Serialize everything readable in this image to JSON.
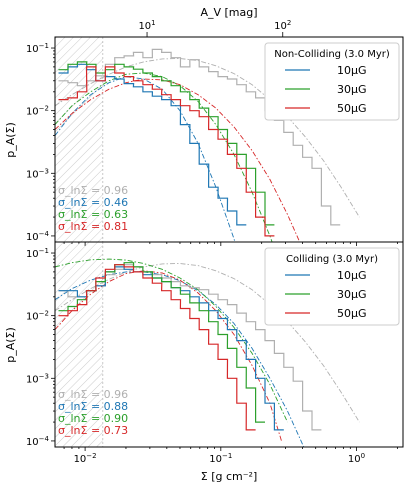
{
  "figure": {
    "top_axis_label": "A_V [mag]",
    "top_ticks": [
      {
        "label": "10",
        "sigma": 0.0286
      },
      {
        "label": "10",
        "sigma": 0.286
      }
    ],
    "top_tick_exponents": [
      "1",
      "2"
    ],
    "x_axis_label": "Σ [g cm⁻²]",
    "y_axis_label": "p_A(Σ)",
    "x_ticks": [
      {
        "value": 0.01,
        "base": "10",
        "exp": "−2"
      },
      {
        "value": 0.1,
        "base": "10",
        "exp": "−1"
      },
      {
        "value": 1,
        "base": "10",
        "exp": "0"
      }
    ],
    "y_ticks": [
      {
        "value": 0.0001,
        "base": "10",
        "exp": "−4"
      },
      {
        "value": 0.001,
        "base": "10",
        "exp": "−3"
      },
      {
        "value": 0.01,
        "base": "10",
        "exp": "−2"
      },
      {
        "value": 0.1,
        "base": "10",
        "exp": "−1"
      }
    ],
    "colors": {
      "gray": "#b0b0b0",
      "blue": "#1f77b4",
      "green": "#2ca02c",
      "red": "#d62728"
    }
  },
  "chart_data": [
    {
      "type": "line",
      "title": "",
      "legend_title": "Non-Colliding (3.0 Myr)",
      "legend_placement": "top-right",
      "x_scale": "log",
      "y_scale": "log",
      "xlim": [
        0.006,
        2.2
      ],
      "ylim": [
        8e-05,
        0.15
      ],
      "threshold_sigma": 0.0135,
      "sigma_labels": [
        {
          "text": "σ_lnΣ = 0.96",
          "color": "#b0b0b0"
        },
        {
          "text": "σ_lnΣ = 0.46",
          "color": "#1f77b4"
        },
        {
          "text": "σ_lnΣ = 0.63",
          "color": "#2ca02c"
        },
        {
          "text": "σ_lnΣ = 0.81",
          "color": "#d62728"
        }
      ],
      "series": [
        {
          "name": "",
          "color": "#b0b0b0",
          "x": [
            0.0069,
            0.0081,
            0.0095,
            0.0111,
            0.013,
            0.0153,
            0.0179,
            0.021,
            0.0246,
            0.0289,
            0.0339,
            0.0397,
            0.0466,
            0.0546,
            0.064,
            0.0751,
            0.0881,
            0.1033,
            0.1211,
            0.1421,
            0.1666,
            0.1954,
            0.2292,
            0.2688,
            0.3153,
            0.3698,
            0.4337,
            0.5087,
            0.5966,
            0.6998
          ],
          "y": [
            0.03,
            0.028,
            0.025,
            0.03,
            0.036,
            0.055,
            0.07,
            0.075,
            0.085,
            0.07,
            0.095,
            0.085,
            0.07,
            0.05,
            0.065,
            0.05,
            0.042,
            0.035,
            0.032,
            0.026,
            0.02,
            0.016,
            0.01,
            0.007,
            0.0045,
            0.0028,
            0.0018,
            0.0012,
            0.0003,
            0.00015
          ]
        },
        {
          "name": "10μG",
          "color": "#1f77b4",
          "x": [
            0.0069,
            0.0081,
            0.0095,
            0.0111,
            0.013,
            0.0153,
            0.0179,
            0.021,
            0.0246,
            0.0289,
            0.0339,
            0.0397,
            0.0466,
            0.0546,
            0.064,
            0.0751,
            0.0881,
            0.1033,
            0.1211,
            0.1421
          ],
          "y": [
            0.04,
            0.05,
            0.055,
            0.045,
            0.03,
            0.035,
            0.032,
            0.027,
            0.024,
            0.02,
            0.017,
            0.015,
            0.012,
            0.006,
            0.003,
            0.0014,
            0.0006,
            0.0004,
            0.00025,
            0.00015
          ]
        },
        {
          "name": "30μG",
          "color": "#2ca02c",
          "x": [
            0.0069,
            0.0081,
            0.0095,
            0.0111,
            0.013,
            0.0153,
            0.0179,
            0.021,
            0.0246,
            0.0289,
            0.0339,
            0.0397,
            0.0466,
            0.0546,
            0.064,
            0.0751,
            0.0881,
            0.1033,
            0.1211,
            0.1421,
            0.1666,
            0.1954,
            0.2292
          ],
          "y": [
            0.045,
            0.055,
            0.06,
            0.055,
            0.04,
            0.045,
            0.055,
            0.05,
            0.046,
            0.04,
            0.035,
            0.03,
            0.025,
            0.02,
            0.015,
            0.011,
            0.008,
            0.005,
            0.003,
            0.002,
            0.0012,
            0.0005,
            0.00015
          ]
        },
        {
          "name": "50μG",
          "color": "#d62728",
          "x": [
            0.0069,
            0.0081,
            0.0095,
            0.0111,
            0.013,
            0.0153,
            0.0179,
            0.021,
            0.0246,
            0.0289,
            0.0339,
            0.0397,
            0.0466,
            0.0546,
            0.064,
            0.0751,
            0.0881,
            0.1033,
            0.1211,
            0.1421,
            0.1666,
            0.1954,
            0.2292
          ],
          "y": [
            0.015,
            0.016,
            0.02,
            0.05,
            0.03,
            0.05,
            0.04,
            0.035,
            0.03,
            0.026,
            0.022,
            0.018,
            0.015,
            0.012,
            0.01,
            0.008,
            0.005,
            0.0035,
            0.002,
            0.0012,
            0.0005,
            0.0002,
            0.0001
          ]
        }
      ],
      "fits": [
        {
          "color": "#b0b0b0",
          "x": [
            0.006,
            0.008,
            0.011,
            0.015,
            0.02,
            0.027,
            0.037,
            0.05,
            0.068,
            0.092,
            0.125,
            0.17,
            0.23,
            0.31,
            0.42,
            0.57,
            0.77,
            1.05
          ],
          "y": [
            0.012,
            0.018,
            0.027,
            0.038,
            0.05,
            0.06,
            0.067,
            0.068,
            0.063,
            0.052,
            0.039,
            0.026,
            0.015,
            0.008,
            0.0038,
            0.0016,
            0.0006,
            0.0002
          ]
        },
        {
          "color": "#1f77b4",
          "x": [
            0.006,
            0.008,
            0.011,
            0.015,
            0.02,
            0.027,
            0.037,
            0.05,
            0.068,
            0.092,
            0.125,
            0.15
          ],
          "y": [
            0.004,
            0.009,
            0.018,
            0.028,
            0.035,
            0.032,
            0.022,
            0.01,
            0.003,
            0.0006,
            9e-05,
            2e-05
          ]
        },
        {
          "color": "#2ca02c",
          "x": [
            0.006,
            0.008,
            0.011,
            0.015,
            0.02,
            0.027,
            0.037,
            0.05,
            0.068,
            0.092,
            0.125,
            0.17,
            0.23,
            0.3
          ],
          "y": [
            0.006,
            0.012,
            0.02,
            0.03,
            0.038,
            0.04,
            0.035,
            0.025,
            0.014,
            0.006,
            0.002,
            0.0005,
            0.0001,
            2e-05
          ]
        },
        {
          "color": "#d62728",
          "x": [
            0.006,
            0.008,
            0.011,
            0.015,
            0.02,
            0.027,
            0.037,
            0.05,
            0.068,
            0.092,
            0.125,
            0.17,
            0.23,
            0.31,
            0.42
          ],
          "y": [
            0.005,
            0.009,
            0.015,
            0.022,
            0.028,
            0.032,
            0.031,
            0.026,
            0.018,
            0.011,
            0.0055,
            0.0023,
            0.0008,
            0.00022,
            5e-05
          ]
        }
      ]
    },
    {
      "type": "line",
      "title": "",
      "legend_title": "Colliding (3.0 Myr)",
      "legend_placement": "top-right",
      "x_scale": "log",
      "y_scale": "log",
      "xlim": [
        0.006,
        2.2
      ],
      "ylim": [
        8e-05,
        0.15
      ],
      "threshold_sigma": 0.0135,
      "sigma_labels": [
        {
          "text": "σ_lnΣ = 0.96",
          "color": "#b0b0b0"
        },
        {
          "text": "σ_lnΣ = 0.88",
          "color": "#1f77b4"
        },
        {
          "text": "σ_lnΣ = 0.90",
          "color": "#2ca02c"
        },
        {
          "text": "σ_lnΣ = 0.73",
          "color": "#d62728"
        }
      ],
      "series": [
        {
          "name": "",
          "color": "#b0b0b0",
          "x": [
            0.0069,
            0.0081,
            0.0095,
            0.0111,
            0.013,
            0.0153,
            0.0179,
            0.021,
            0.0246,
            0.0289,
            0.0339,
            0.0397,
            0.0466,
            0.0546,
            0.064,
            0.0751,
            0.0881,
            0.1033,
            0.1211,
            0.1421,
            0.1666,
            0.1954,
            0.2292,
            0.2688,
            0.3153,
            0.3698,
            0.4337,
            0.5087
          ],
          "y": [
            0.025,
            0.02,
            0.02,
            0.025,
            0.03,
            0.045,
            0.055,
            0.065,
            0.06,
            0.05,
            0.045,
            0.04,
            0.035,
            0.03,
            0.028,
            0.026,
            0.022,
            0.018,
            0.015,
            0.011,
            0.008,
            0.006,
            0.004,
            0.0025,
            0.0015,
            0.0009,
            0.0003,
            0.00015
          ]
        },
        {
          "name": "10μG",
          "color": "#1f77b4",
          "x": [
            0.0069,
            0.0081,
            0.0095,
            0.0111,
            0.013,
            0.0153,
            0.0179,
            0.021,
            0.0246,
            0.0289,
            0.0339,
            0.0397,
            0.0466,
            0.0546,
            0.064,
            0.0751,
            0.0881,
            0.1033,
            0.1211,
            0.1421,
            0.1666,
            0.1954,
            0.2292,
            0.2688
          ],
          "y": [
            0.025,
            0.025,
            0.02,
            0.025,
            0.03,
            0.05,
            0.06,
            0.055,
            0.05,
            0.045,
            0.04,
            0.035,
            0.028,
            0.025,
            0.02,
            0.016,
            0.012,
            0.009,
            0.006,
            0.004,
            0.002,
            0.001,
            0.0004,
            0.00015
          ]
        },
        {
          "name": "30μG",
          "color": "#2ca02c",
          "x": [
            0.0069,
            0.0081,
            0.0095,
            0.0111,
            0.013,
            0.0153,
            0.0179,
            0.021,
            0.0246,
            0.0289,
            0.0339,
            0.0397,
            0.0466,
            0.0546,
            0.064,
            0.0751,
            0.0881,
            0.1033,
            0.1211,
            0.1421,
            0.1666,
            0.1954
          ],
          "y": [
            0.012,
            0.014,
            0.018,
            0.025,
            0.035,
            0.05,
            0.065,
            0.07,
            0.06,
            0.05,
            0.04,
            0.035,
            0.028,
            0.022,
            0.016,
            0.012,
            0.008,
            0.005,
            0.003,
            0.0015,
            0.0007,
            0.0002
          ]
        },
        {
          "name": "50μG",
          "color": "#d62728",
          "x": [
            0.0069,
            0.0081,
            0.0095,
            0.0111,
            0.013,
            0.0153,
            0.0179,
            0.021,
            0.0246,
            0.0289,
            0.0339,
            0.0397,
            0.0466,
            0.0546,
            0.064,
            0.0751,
            0.0881,
            0.1033,
            0.1211,
            0.1421,
            0.1666
          ],
          "y": [
            0.01,
            0.012,
            0.015,
            0.025,
            0.04,
            0.055,
            0.065,
            0.06,
            0.05,
            0.04,
            0.033,
            0.025,
            0.018,
            0.013,
            0.009,
            0.006,
            0.0035,
            0.002,
            0.001,
            0.0004,
            0.00015
          ]
        }
      ],
      "fits": [
        {
          "color": "#b0b0b0",
          "x": [
            0.006,
            0.008,
            0.011,
            0.015,
            0.02,
            0.027,
            0.037,
            0.05,
            0.068,
            0.092,
            0.125,
            0.17,
            0.23,
            0.31,
            0.42,
            0.57,
            0.77,
            1.05
          ],
          "y": [
            0.012,
            0.018,
            0.027,
            0.038,
            0.05,
            0.06,
            0.067,
            0.068,
            0.063,
            0.052,
            0.039,
            0.026,
            0.015,
            0.008,
            0.0038,
            0.0016,
            0.0006,
            0.0002
          ]
        },
        {
          "color": "#1f77b4",
          "x": [
            0.006,
            0.008,
            0.011,
            0.015,
            0.02,
            0.027,
            0.037,
            0.05,
            0.068,
            0.092,
            0.125,
            0.17,
            0.23,
            0.31,
            0.42
          ],
          "y": [
            0.018,
            0.027,
            0.037,
            0.045,
            0.05,
            0.05,
            0.045,
            0.036,
            0.025,
            0.015,
            0.0075,
            0.003,
            0.001,
            0.0003,
            7e-05
          ]
        },
        {
          "color": "#2ca02c",
          "x": [
            0.006,
            0.008,
            0.011,
            0.015,
            0.02,
            0.027,
            0.037,
            0.05,
            0.068,
            0.092,
            0.125,
            0.17,
            0.23,
            0.31
          ],
          "y": [
            0.06,
            0.07,
            0.078,
            0.08,
            0.077,
            0.068,
            0.055,
            0.04,
            0.026,
            0.014,
            0.0065,
            0.0025,
            0.0008,
            0.0002
          ]
        },
        {
          "color": "#d62728",
          "x": [
            0.006,
            0.008,
            0.011,
            0.015,
            0.02,
            0.027,
            0.037,
            0.05,
            0.068,
            0.092,
            0.125,
            0.17,
            0.23,
            0.28
          ],
          "y": [
            0.006,
            0.012,
            0.022,
            0.035,
            0.047,
            0.052,
            0.048,
            0.037,
            0.023,
            0.012,
            0.005,
            0.0016,
            0.0004,
            0.0001
          ]
        }
      ]
    }
  ]
}
